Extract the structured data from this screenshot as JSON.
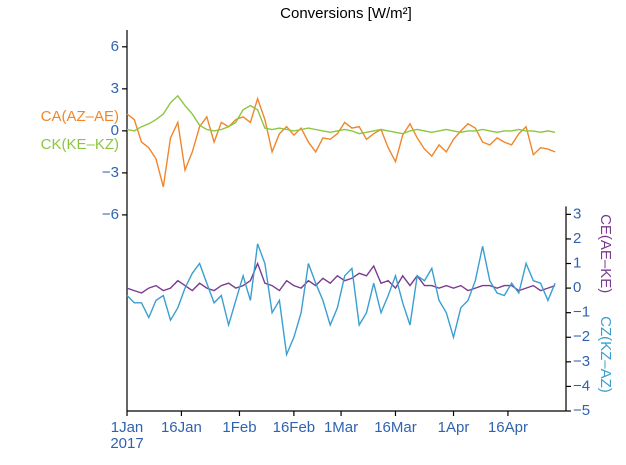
{
  "chart_data": {
    "type": "line",
    "title": "Conversions [W/m²]",
    "x": [
      "2017-01-01",
      "2017-01-03",
      "2017-01-05",
      "2017-01-07",
      "2017-01-09",
      "2017-01-11",
      "2017-01-13",
      "2017-01-15",
      "2017-01-17",
      "2017-01-19",
      "2017-01-21",
      "2017-01-23",
      "2017-01-25",
      "2017-01-27",
      "2017-01-29",
      "2017-01-31",
      "2017-02-02",
      "2017-02-04",
      "2017-02-06",
      "2017-02-08",
      "2017-02-10",
      "2017-02-12",
      "2017-02-14",
      "2017-02-16",
      "2017-02-18",
      "2017-02-20",
      "2017-02-22",
      "2017-02-24",
      "2017-02-26",
      "2017-02-28",
      "2017-03-02",
      "2017-03-04",
      "2017-03-06",
      "2017-03-08",
      "2017-03-10",
      "2017-03-12",
      "2017-03-14",
      "2017-03-16",
      "2017-03-18",
      "2017-03-20",
      "2017-03-22",
      "2017-03-24",
      "2017-03-26",
      "2017-03-28",
      "2017-03-30",
      "2017-04-01",
      "2017-04-03",
      "2017-04-05",
      "2017-04-07",
      "2017-04-09",
      "2017-04-11",
      "2017-04-13",
      "2017-04-15",
      "2017-04-17",
      "2017-04-19",
      "2017-04-21",
      "2017-04-23",
      "2017-04-25",
      "2017-04-27",
      "2017-04-29"
    ],
    "xlim": [
      "2017-01-01",
      "2017-05-02"
    ],
    "xticks": [
      {
        "value": "2017-01-01",
        "label": "1Jan"
      },
      {
        "value": "2017-01-16",
        "label": "16Jan"
      },
      {
        "value": "2017-02-01",
        "label": "1Feb"
      },
      {
        "value": "2017-02-16",
        "label": "16Feb"
      },
      {
        "value": "2017-03-01",
        "label": "1Mar"
      },
      {
        "value": "2017-03-16",
        "label": "16Mar"
      },
      {
        "value": "2017-04-01",
        "label": "1Apr"
      },
      {
        "value": "2017-04-16",
        "label": "16Apr"
      }
    ],
    "x_year_label": "2017",
    "ylim": [
      -20,
      7.2
    ],
    "yticks": [
      {
        "value": -6,
        "label": "−6"
      },
      {
        "value": -3,
        "label": "−3"
      },
      0,
      3,
      6
    ],
    "y2lim": [
      -5,
      10.5
    ],
    "y2ticks": [
      {
        "value": -5,
        "label": "−5"
      },
      {
        "value": -4,
        "label": "−4"
      },
      {
        "value": -3,
        "label": "−3"
      },
      {
        "value": -2,
        "label": "−2"
      },
      {
        "value": -1,
        "label": "−1"
      },
      0,
      1,
      2,
      3
    ],
    "tick_color": "#2f63b0",
    "series": [
      {
        "name": "CA(AZ–AE)",
        "color": "#f0862c",
        "values": [
          1.2,
          0.8,
          -0.8,
          -1.2,
          -2,
          -4,
          -0.5,
          0.6,
          -2.8,
          -1.5,
          0.3,
          1.0,
          -0.8,
          0.6,
          0.3,
          0.8,
          1.0,
          0.6,
          2.3,
          0.8,
          -1.5,
          -0.2,
          0.3,
          -0.3,
          0.2,
          -0.8,
          -1.5,
          -0.5,
          -0.6,
          -0.2,
          0.6,
          0.2,
          0.3,
          -0.6,
          -0.2,
          0.1,
          -1.2,
          -2.2,
          -0.3,
          0.5,
          -0.5,
          -1.3,
          -1.8,
          -1.0,
          -1.5,
          -0.6,
          0.0,
          0.5,
          0.2,
          -0.8,
          -1.0,
          -0.5,
          -0.8,
          -1.0,
          -0.2,
          0.3,
          -1.7,
          -1.2,
          -1.3,
          -1.5
        ]
      },
      {
        "name": "CK(KE–KZ)",
        "color": "#8cc63e",
        "values": [
          0.1,
          0.0,
          0.3,
          0.5,
          0.8,
          1.2,
          2.0,
          2.5,
          1.8,
          1.2,
          0.4,
          0.1,
          0.0,
          0.1,
          0.3,
          0.6,
          1.5,
          1.8,
          1.5,
          0.2,
          0.1,
          0.2,
          0.1,
          0.0,
          0.1,
          0.2,
          0.1,
          0.0,
          -0.1,
          0.0,
          0.1,
          0.0,
          -0.2,
          -0.1,
          0.0,
          0.1,
          0.0,
          -0.1,
          -0.2,
          0.0,
          0.1,
          0.0,
          -0.1,
          0.0,
          0.1,
          0.0,
          -0.1,
          0.0,
          0.0,
          0.1,
          0.0,
          -0.1,
          0.0,
          0.0,
          0.1,
          0.0,
          0.0,
          -0.1,
          0.0,
          -0.1
        ]
      },
      {
        "name": "CE(AE–KE)",
        "color": "#7a3b8f",
        "axis": "y2",
        "values": [
          0.0,
          -0.1,
          -0.2,
          0.0,
          0.1,
          -0.1,
          0.0,
          0.3,
          0.1,
          -0.1,
          0.2,
          0.0,
          -0.1,
          0.1,
          0.2,
          0.0,
          0.1,
          0.3,
          1.0,
          0.2,
          0.1,
          -0.1,
          0.3,
          0.1,
          0.0,
          0.3,
          0.1,
          0.4,
          0.2,
          0.5,
          0.3,
          0.4,
          0.6,
          0.5,
          0.9,
          0.2,
          0.3,
          0.0,
          0.5,
          0.1,
          0.5,
          0.1,
          0.1,
          0.0,
          0.1,
          0.0,
          0.1,
          -0.1,
          0.0,
          0.1,
          0.1,
          0.0,
          0.1,
          0.1,
          -0.1,
          0.0,
          0.1,
          -0.1,
          0.0,
          0.1
        ]
      },
      {
        "name": "CZ(KZ–AZ)",
        "color": "#3a9fd0",
        "axis": "y2",
        "values": [
          -0.3,
          -0.6,
          -0.6,
          -1.2,
          -0.5,
          -0.3,
          -1.3,
          -0.8,
          0.0,
          0.6,
          1.0,
          0.2,
          -0.6,
          -0.3,
          -1.5,
          -0.5,
          0.5,
          -0.5,
          1.8,
          1.0,
          -1.0,
          -0.5,
          -2.7,
          -2.0,
          -1.0,
          1.0,
          0.2,
          -0.5,
          -1.5,
          -0.8,
          0.5,
          0.8,
          -1.5,
          -1.0,
          0.2,
          -1.0,
          -0.3,
          0.5,
          -0.6,
          -1.5,
          0.5,
          0.3,
          0.8,
          -0.5,
          -1.0,
          -2.0,
          -0.8,
          -0.5,
          0.3,
          1.7,
          0.3,
          -0.2,
          -0.3,
          0.2,
          -0.2,
          1.0,
          0.3,
          0.2,
          -0.5,
          0.2
        ]
      }
    ]
  }
}
